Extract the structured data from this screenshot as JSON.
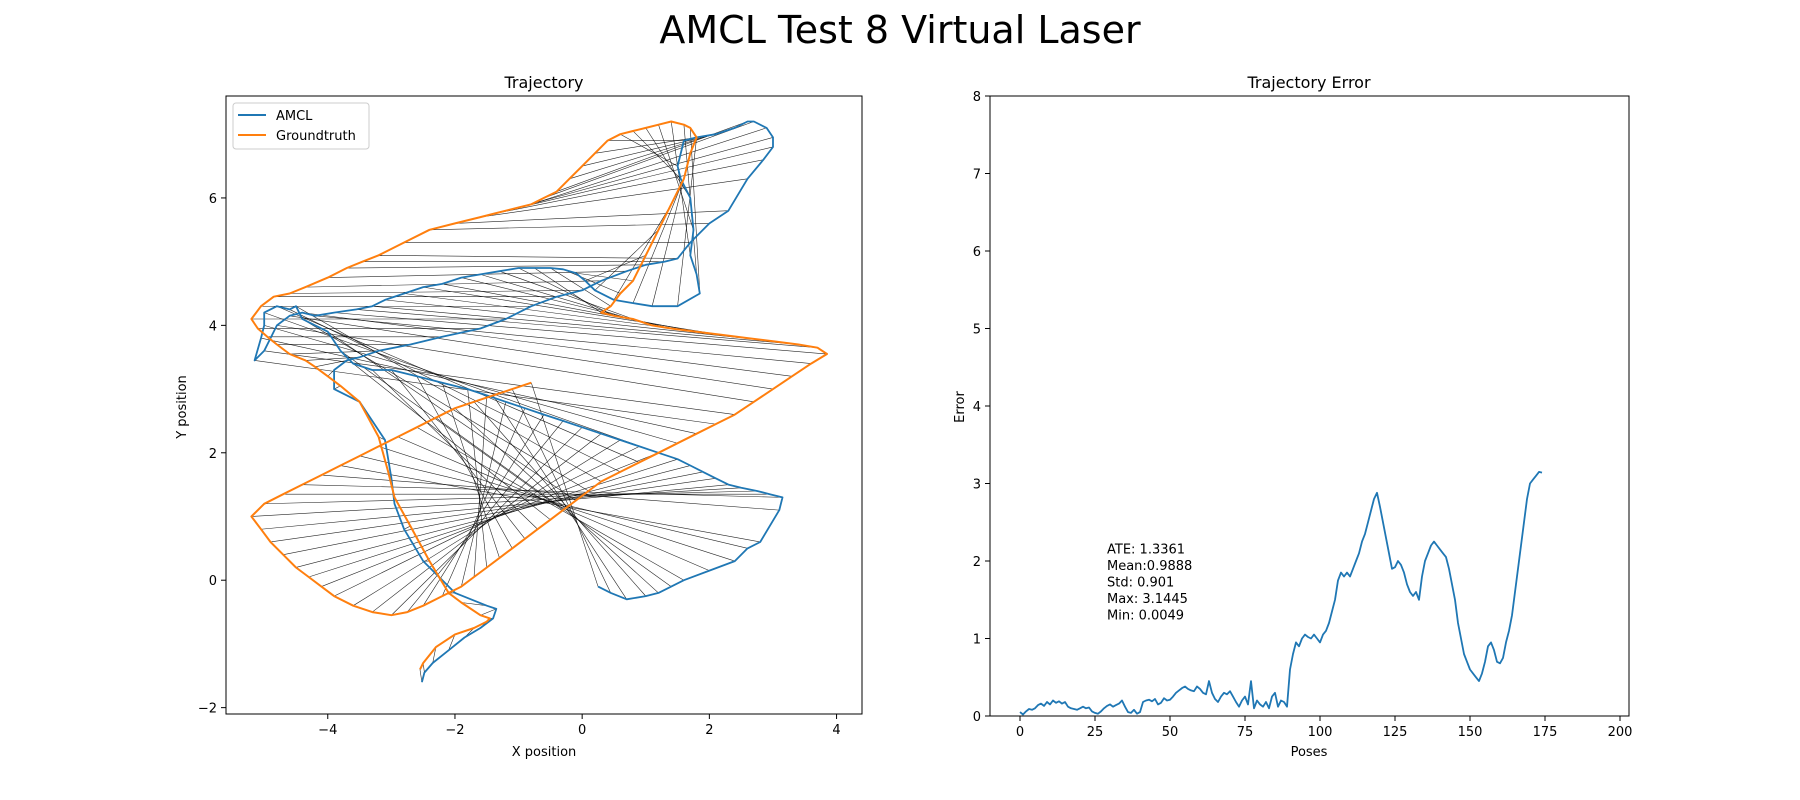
{
  "figure": {
    "title": "AMCL Test 8 Virtual Laser"
  },
  "colors": {
    "amcl": "#1f77b4",
    "groundtruth": "#ff7f0e",
    "error_lines": "#000000"
  },
  "chart_data": [
    {
      "type": "line",
      "title": "Trajectory",
      "xlabel": "X position",
      "ylabel": "Y position",
      "xlim": [
        -5.6,
        4.4
      ],
      "ylim": [
        -2.1,
        7.6
      ],
      "xticks": [
        -4,
        -2,
        0,
        2,
        4
      ],
      "yticks": [
        -2,
        0,
        2,
        4,
        6
      ],
      "legend": {
        "placement": "top-left",
        "entries": [
          "AMCL",
          "Groundtruth"
        ]
      },
      "series": [
        {
          "name": "AMCL",
          "color": "#1f77b4",
          "x": [
            -2.52,
            -2.48,
            -2.35,
            -2.1,
            -1.85,
            -1.6,
            -1.4,
            -1.35,
            -1.5,
            -2.0,
            -2.5,
            -2.8,
            -2.95,
            -3.0,
            -3.1,
            -3.5,
            -3.9,
            -3.9,
            -3.7,
            -3.5,
            -3.2,
            -2.7,
            -2.2,
            -1.6,
            -1.2,
            -0.8,
            -0.4,
            0.0,
            0.3,
            0.7,
            1.0,
            1.3,
            1.5,
            1.7,
            2.0,
            2.3,
            2.6,
            2.85,
            3.0,
            3.0,
            2.9,
            2.7,
            2.6,
            2.4,
            2.1,
            1.8,
            1.6,
            1.5,
            1.55,
            1.7,
            1.75,
            1.7,
            1.8,
            1.85,
            1.5,
            1.1,
            0.8,
            0.5,
            0.2,
            0.05,
            -0.1,
            -0.3,
            -0.5,
            -0.75,
            -1.0,
            -1.3,
            -1.6,
            -1.9,
            -2.2,
            -2.5,
            -2.8,
            -3.1,
            -3.3,
            -3.55,
            -3.9,
            -4.2,
            -4.4,
            -4.6,
            -4.8,
            -5.0,
            -5.15,
            -5.05,
            -5.0,
            -5.0,
            -4.8,
            -4.6,
            -4.5,
            -4.4,
            -4.0,
            -3.8,
            -3.6,
            -3.3,
            -3.0,
            -2.6,
            -2.2,
            -1.8,
            -1.5,
            -1.2,
            -0.9,
            -0.6,
            -0.3,
            0.0,
            0.3,
            0.6,
            0.9,
            1.2,
            1.5,
            1.7,
            1.9,
            2.1,
            2.3,
            2.5,
            2.75,
            2.95,
            3.15,
            3.1,
            2.8,
            2.6,
            2.4,
            2.0,
            1.6,
            1.4,
            1.2,
            1.0,
            0.7,
            0.45,
            0.25
          ],
          "y": [
            -1.6,
            -1.45,
            -1.3,
            -1.1,
            -0.9,
            -0.75,
            -0.6,
            -0.45,
            -0.4,
            -0.2,
            0.3,
            0.8,
            1.2,
            1.6,
            2.2,
            2.8,
            3.0,
            3.3,
            3.45,
            3.5,
            3.6,
            3.7,
            3.82,
            3.95,
            4.1,
            4.3,
            4.45,
            4.55,
            4.7,
            4.85,
            4.95,
            5.0,
            5.05,
            5.3,
            5.6,
            5.8,
            6.3,
            6.6,
            6.8,
            6.95,
            7.1,
            7.2,
            7.2,
            7.1,
            7.0,
            6.95,
            6.9,
            6.5,
            6.3,
            6.0,
            5.5,
            5.1,
            4.8,
            4.5,
            4.3,
            4.3,
            4.35,
            4.4,
            4.55,
            4.7,
            4.82,
            4.88,
            4.9,
            4.9,
            4.9,
            4.85,
            4.8,
            4.75,
            4.65,
            4.6,
            4.5,
            4.4,
            4.3,
            4.25,
            4.2,
            4.15,
            4.2,
            4.15,
            4.0,
            3.6,
            3.45,
            3.8,
            4.0,
            4.2,
            4.3,
            4.25,
            4.3,
            4.1,
            3.9,
            3.6,
            3.4,
            3.3,
            3.3,
            3.2,
            3.1,
            3.0,
            2.9,
            2.8,
            2.7,
            2.6,
            2.5,
            2.4,
            2.3,
            2.2,
            2.1,
            2.0,
            1.9,
            1.8,
            1.7,
            1.6,
            1.5,
            1.45,
            1.4,
            1.35,
            1.3,
            1.1,
            0.6,
            0.5,
            0.3,
            0.15,
            0.0,
            -0.1,
            -0.2,
            -0.25,
            -0.3,
            -0.2,
            -0.1
          ]
        },
        {
          "name": "Groundtruth",
          "color": "#ff7f0e",
          "x": [
            -2.55,
            -2.5,
            -2.3,
            -2.0,
            -1.7,
            -1.5,
            -1.45,
            -1.6,
            -1.9,
            -2.1,
            -2.4,
            -2.7,
            -2.95,
            -3.05,
            -3.2,
            -3.5,
            -3.8,
            -4.0,
            -4.2,
            -4.35,
            -4.6,
            -4.8,
            -4.95,
            -5.1,
            -5.2,
            -5.05,
            -4.85,
            -4.6,
            -4.35,
            -4.0,
            -3.7,
            -3.45,
            -3.2,
            -2.8,
            -2.4,
            -2.0,
            -1.6,
            -1.4,
            -1.2,
            -1.0,
            -0.8,
            -0.6,
            -0.4,
            -0.2,
            0.0,
            0.2,
            0.4,
            0.6,
            0.8,
            1.0,
            1.2,
            1.4,
            1.6,
            1.7,
            1.8,
            1.7,
            1.6,
            1.4,
            1.2,
            1.0,
            0.8,
            0.6,
            0.45,
            0.3,
            0.5,
            0.8,
            1.1,
            1.4,
            1.8,
            2.2,
            2.6,
            3.0,
            3.4,
            3.7,
            3.85,
            3.6,
            3.3,
            3.0,
            2.7,
            2.4,
            2.1,
            1.8,
            1.5,
            1.2,
            0.9,
            0.6,
            0.3,
            0.1,
            -0.1,
            -0.3,
            -0.5,
            -0.7,
            -0.9,
            -1.1,
            -1.3,
            -1.5,
            -1.7,
            -1.9,
            -2.2,
            -2.5,
            -2.75,
            -3.0,
            -3.3,
            -3.6,
            -3.9,
            -4.1,
            -4.3,
            -4.5,
            -4.7,
            -4.9,
            -5.05,
            -5.2,
            -5.0,
            -4.7,
            -4.4,
            -4.1,
            -3.8,
            -3.5,
            -3.2,
            -2.9,
            -2.6,
            -2.3,
            -2.0,
            -1.7,
            -1.4,
            -1.1,
            -0.8
          ],
          "y": [
            -1.4,
            -1.3,
            -1.05,
            -0.85,
            -0.75,
            -0.65,
            -0.6,
            -0.55,
            -0.35,
            -0.2,
            0.3,
            0.85,
            1.3,
            1.7,
            2.25,
            2.8,
            3.05,
            3.2,
            3.35,
            3.45,
            3.55,
            3.7,
            3.82,
            3.95,
            4.1,
            4.3,
            4.45,
            4.5,
            4.6,
            4.75,
            4.9,
            5.0,
            5.1,
            5.3,
            5.5,
            5.6,
            5.7,
            5.75,
            5.8,
            5.85,
            5.9,
            6.0,
            6.1,
            6.3,
            6.5,
            6.7,
            6.9,
            7.0,
            7.05,
            7.1,
            7.15,
            7.2,
            7.15,
            7.1,
            6.95,
            6.7,
            6.3,
            5.9,
            5.5,
            5.1,
            4.7,
            4.5,
            4.3,
            4.2,
            4.15,
            4.1,
            4.0,
            3.95,
            3.9,
            3.85,
            3.8,
            3.75,
            3.7,
            3.65,
            3.55,
            3.4,
            3.2,
            3.0,
            2.8,
            2.6,
            2.45,
            2.3,
            2.15,
            2.0,
            1.85,
            1.7,
            1.55,
            1.4,
            1.25,
            1.1,
            0.95,
            0.8,
            0.65,
            0.5,
            0.35,
            0.2,
            0.05,
            -0.1,
            -0.25,
            -0.4,
            -0.5,
            -0.55,
            -0.5,
            -0.4,
            -0.25,
            -0.1,
            0.05,
            0.2,
            0.4,
            0.6,
            0.8,
            1.0,
            1.2,
            1.35,
            1.5,
            1.65,
            1.8,
            1.95,
            2.1,
            2.25,
            2.4,
            2.55,
            2.7,
            2.8,
            2.9,
            3.0,
            3.1
          ]
        }
      ]
    },
    {
      "type": "line",
      "title": "Trajectory Error",
      "xlabel": "Poses",
      "ylabel": "Error",
      "xlim": [
        -10,
        203
      ],
      "ylim": [
        0,
        8
      ],
      "xticks": [
        0,
        25,
        50,
        75,
        100,
        125,
        150,
        175,
        200
      ],
      "yticks": [
        0,
        1,
        2,
        3,
        4,
        5,
        6,
        7,
        8
      ],
      "series": [
        {
          "color": "#1f77b4",
          "x_start": 0,
          "values": [
            0.05,
            0.02,
            0.06,
            0.09,
            0.08,
            0.1,
            0.14,
            0.16,
            0.13,
            0.18,
            0.15,
            0.2,
            0.17,
            0.19,
            0.16,
            0.18,
            0.12,
            0.1,
            0.09,
            0.08,
            0.1,
            0.12,
            0.1,
            0.11,
            0.06,
            0.04,
            0.03,
            0.06,
            0.1,
            0.13,
            0.15,
            0.12,
            0.14,
            0.16,
            0.2,
            0.12,
            0.05,
            0.04,
            0.08,
            0.03,
            0.05,
            0.18,
            0.2,
            0.21,
            0.19,
            0.22,
            0.15,
            0.17,
            0.23,
            0.2,
            0.21,
            0.25,
            0.3,
            0.33,
            0.36,
            0.38,
            0.35,
            0.33,
            0.32,
            0.38,
            0.35,
            0.3,
            0.28,
            0.45,
            0.3,
            0.22,
            0.18,
            0.25,
            0.3,
            0.28,
            0.32,
            0.25,
            0.18,
            0.12,
            0.2,
            0.25,
            0.15,
            0.45,
            0.1,
            0.2,
            0.15,
            0.12,
            0.18,
            0.1,
            0.25,
            0.3,
            0.12,
            0.2,
            0.18,
            0.12,
            0.6,
            0.8,
            0.95,
            0.9,
            1.0,
            1.05,
            1.02,
            1.0,
            1.05,
            1.0,
            0.95,
            1.05,
            1.1,
            1.2,
            1.35,
            1.5,
            1.75,
            1.85,
            1.8,
            1.85,
            1.8,
            1.9,
            2.0,
            2.1,
            2.25,
            2.35,
            2.5,
            2.65,
            2.8,
            2.88,
            2.7,
            2.5,
            2.3,
            2.1,
            1.9,
            1.92,
            2.0,
            1.95,
            1.85,
            1.7,
            1.6,
            1.55,
            1.6,
            1.5,
            1.8,
            2.0,
            2.1,
            2.2,
            2.25,
            2.2,
            2.15,
            2.1,
            2.05,
            1.9,
            1.7,
            1.5,
            1.2,
            1.0,
            0.8,
            0.7,
            0.6,
            0.55,
            0.5,
            0.45,
            0.55,
            0.7,
            0.9,
            0.95,
            0.85,
            0.7,
            0.68,
            0.75,
            0.95,
            1.1,
            1.3,
            1.6,
            1.9,
            2.2,
            2.5,
            2.8,
            3.0,
            3.05,
            3.1,
            3.15,
            3.14
          ]
        }
      ],
      "annotation": {
        "lines": [
          "ATE: 1.3361",
          "Mean:0.9888",
          "Std: 0.901",
          "Max: 3.1445",
          "Min: 0.0049"
        ],
        "anchor": [
          29,
          2.1
        ]
      }
    }
  ]
}
